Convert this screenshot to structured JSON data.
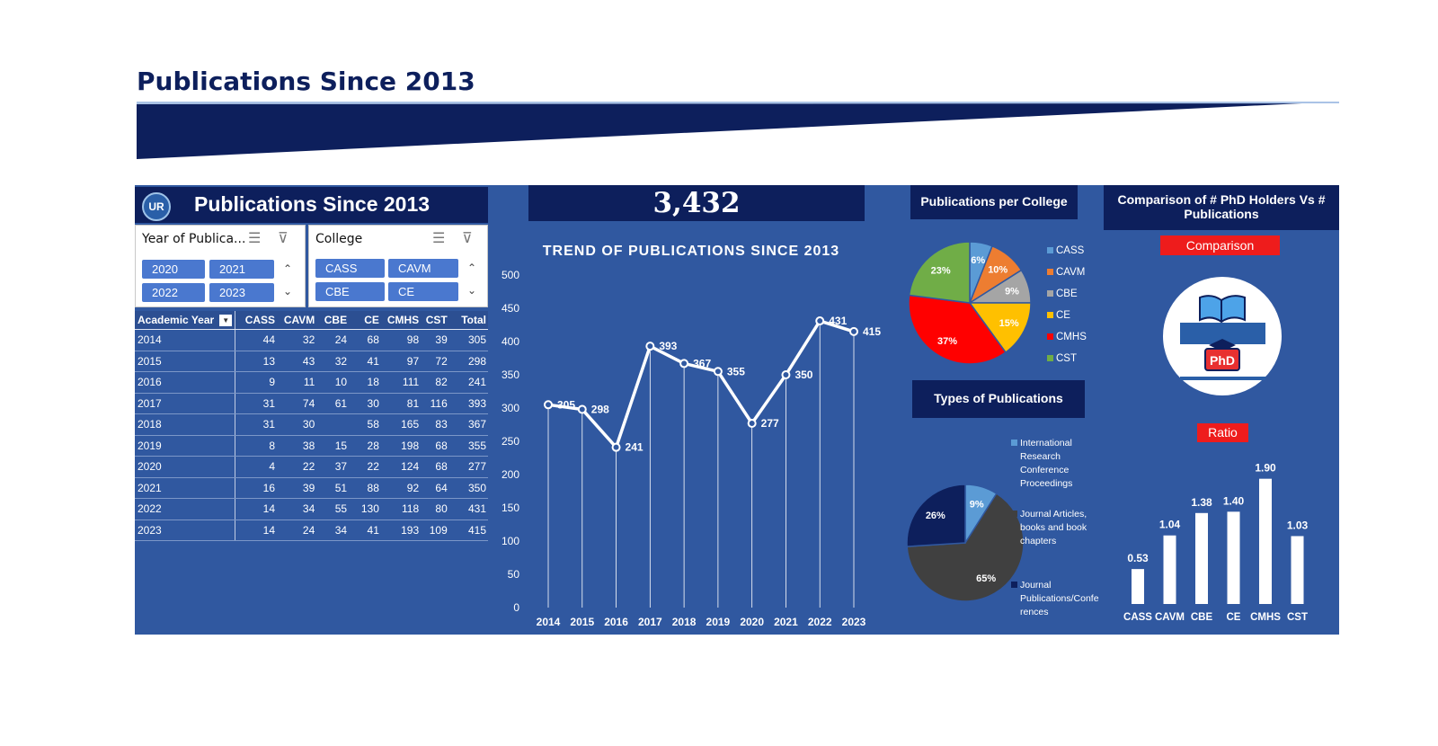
{
  "page": {
    "title": "Publications Since 2013"
  },
  "dashboard": {
    "panel_title": "Publications Since 2013",
    "logo_text": "UR",
    "total": "3,432",
    "slicers": {
      "year": {
        "label": "Year of Publica...",
        "options": [
          "2020",
          "2021",
          "2022",
          "2023"
        ]
      },
      "college": {
        "label": "College",
        "options": [
          "CASS",
          "CAVM",
          "CBE",
          "CE"
        ]
      }
    },
    "table": {
      "headers": [
        "Academic Year",
        "CASS",
        "CAVM",
        "CBE",
        "CE",
        "CMHS",
        "CST",
        "Total"
      ],
      "rows": [
        [
          "2014",
          "44",
          "32",
          "24",
          "68",
          "98",
          "39",
          "305"
        ],
        [
          "2015",
          "13",
          "43",
          "32",
          "41",
          "97",
          "72",
          "298"
        ],
        [
          "2016",
          "9",
          "11",
          "10",
          "18",
          "111",
          "82",
          "241"
        ],
        [
          "2017",
          "31",
          "74",
          "61",
          "30",
          "81",
          "116",
          "393"
        ],
        [
          "2018",
          "31",
          "30",
          "",
          "58",
          "165",
          "83",
          "367"
        ],
        [
          "2019",
          "8",
          "38",
          "15",
          "28",
          "198",
          "68",
          "355"
        ],
        [
          "2020",
          "4",
          "22",
          "37",
          "22",
          "124",
          "68",
          "277"
        ],
        [
          "2021",
          "16",
          "39",
          "51",
          "88",
          "92",
          "64",
          "350"
        ],
        [
          "2022",
          "14",
          "34",
          "55",
          "130",
          "118",
          "80",
          "431"
        ],
        [
          "2023",
          "14",
          "24",
          "34",
          "41",
          "193",
          "109",
          "415"
        ]
      ]
    },
    "pie_college_title": "Publications per College",
    "pie_types_title": "Types of Publications",
    "comparison_title": "Comparison of  # PhD Holders Vs # Publications",
    "comparison_tag": "Comparison",
    "ratio_tag": "Ratio",
    "phd_icon_text": "PhD"
  },
  "chart_data": [
    {
      "type": "line",
      "title": "TREND OF PUBLICATIONS SINCE 2013",
      "x": [
        "2014",
        "2015",
        "2016",
        "2017",
        "2018",
        "2019",
        "2020",
        "2021",
        "2022",
        "2023"
      ],
      "values": [
        305,
        298,
        241,
        393,
        367,
        355,
        277,
        350,
        431,
        415
      ],
      "ylim": [
        0,
        500
      ],
      "yticks": [
        0,
        50,
        100,
        150,
        200,
        250,
        300,
        350,
        400,
        450,
        500
      ],
      "color": "#ffffff"
    },
    {
      "type": "pie",
      "title": "Publications per College",
      "labels": [
        "CASS",
        "CAVM",
        "CBE",
        "CE",
        "CMHS",
        "CST"
      ],
      "values": [
        6,
        10,
        9,
        15,
        37,
        23
      ],
      "value_labels": [
        "6%",
        "10%",
        "9%",
        "15%",
        "37%",
        "23%"
      ],
      "colors": [
        "#5b9bd5",
        "#ed7d31",
        "#a5a5a5",
        "#ffc000",
        "#ff0000",
        "#70ad47"
      ],
      "legend": "right"
    },
    {
      "type": "pie",
      "title": "Types of Publications",
      "labels": [
        "International Research Conference Proceedings",
        "Journal Articles, books and book chapters",
        "Journal Publications/Conferences"
      ],
      "legend_lines": [
        [
          "International",
          "Research",
          "Conference",
          "Proceedings"
        ],
        [
          "Journal Articles,",
          "books and book",
          "chapters"
        ],
        [
          "Journal",
          "Publications/Confe",
          "rences"
        ]
      ],
      "values": [
        9,
        65,
        26
      ],
      "value_labels": [
        "9%",
        "65%",
        "26%"
      ],
      "colors": [
        "#5b9bd5",
        "#404040",
        "#0d1f5c"
      ],
      "legend": "right"
    },
    {
      "type": "bar",
      "title": "Ratio",
      "categories": [
        "CASS",
        "CAVM",
        "CBE",
        "CE",
        "CMHS",
        "CST"
      ],
      "values": [
        0.53,
        1.04,
        1.38,
        1.4,
        1.9,
        1.03
      ],
      "value_labels": [
        "0.53",
        "1.04",
        "1.38",
        "1.40",
        "1.90",
        "1.03"
      ],
      "ylim": [
        0,
        2.4
      ],
      "color": "#ffffff"
    }
  ]
}
